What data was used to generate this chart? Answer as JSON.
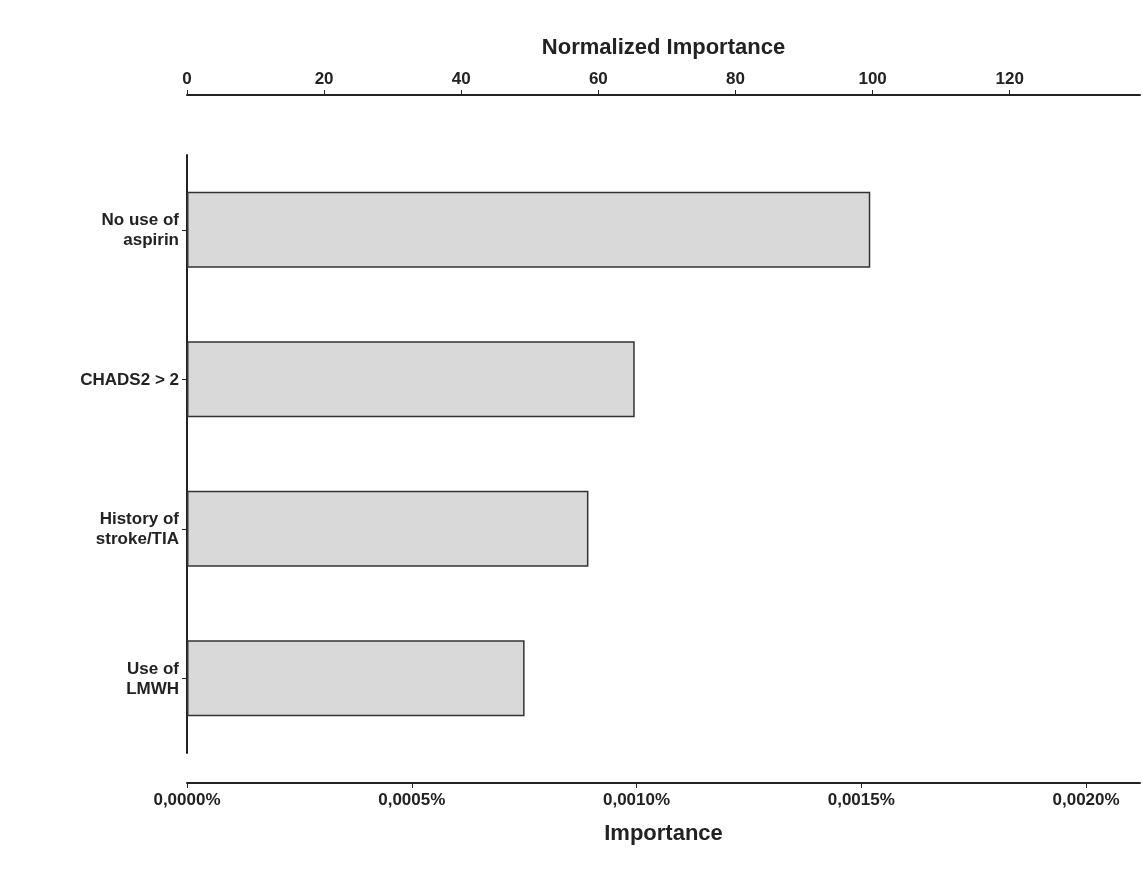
{
  "chart_data": {
    "type": "bar",
    "orientation": "horizontal",
    "categories": [
      "No use of\naspirin",
      "CHADS2 > 2",
      "History of\nstroke/TIA",
      "Use of\nLMWH"
    ],
    "values": [
      0.00152,
      0.000996,
      0.000893,
      0.000751
    ],
    "color": "#d9d9d9",
    "xlabel": "Importance",
    "x2label": "Normalized Importance",
    "xlim": [
      0,
      0.00212
    ],
    "xticks": [
      {
        "value": 0,
        "label": "0,0000%"
      },
      {
        "value": 0.0005,
        "label": "0,0005%"
      },
      {
        "value": 0.001,
        "label": "0,0010%"
      },
      {
        "value": 0.0015,
        "label": "0,0015%"
      },
      {
        "value": 0.002,
        "label": "0,0020%"
      }
    ],
    "x2lim": [
      0,
      139
    ],
    "x2ticks": [
      0,
      20,
      40,
      60,
      80,
      100,
      120
    ],
    "grid": false
  }
}
